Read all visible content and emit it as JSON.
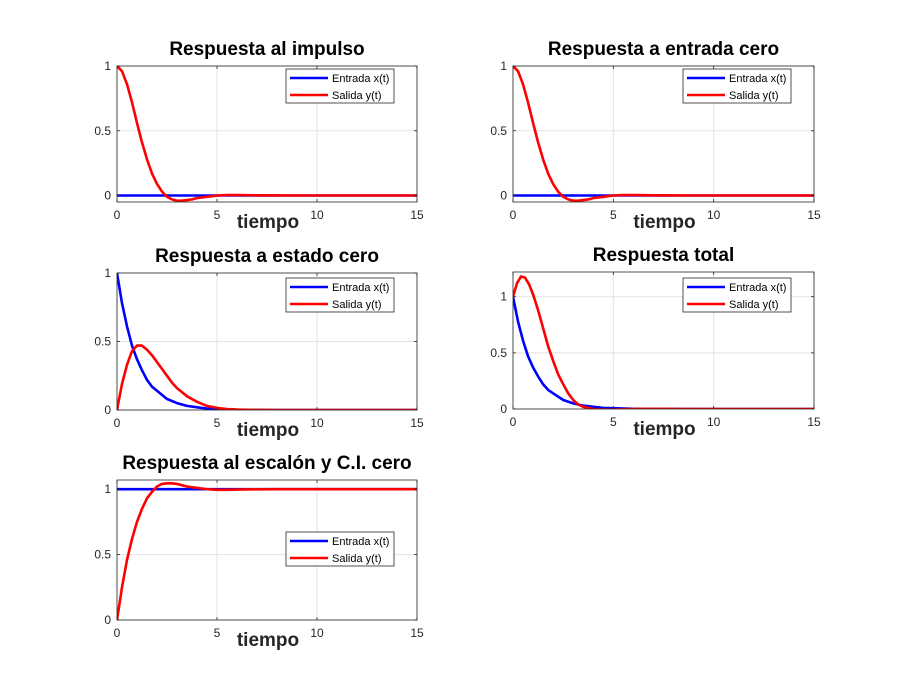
{
  "figure": {
    "background": "#ffffff"
  },
  "chart_data": [
    {
      "type": "line",
      "title": "Respuesta al impulso",
      "xlabel": "tiempo",
      "ylabel": "",
      "xlim": [
        0,
        15
      ],
      "ylim": [
        -0.05,
        1
      ],
      "xticks": [
        0,
        5,
        10,
        15
      ],
      "xtick_labels": [
        "0",
        "5",
        "10",
        "15"
      ],
      "yticks": [
        0,
        0.5,
        1
      ],
      "ytick_labels": [
        "0",
        "0.5",
        "1"
      ],
      "grid": true,
      "legend_location": "top-right",
      "series": [
        {
          "name": "Entrada x(t)",
          "color": "#0000ff",
          "x": [
            0,
            15
          ],
          "y": [
            0,
            0
          ]
        },
        {
          "name": "Salida y(t)",
          "color": "#ff0000",
          "x": [
            0,
            0.25,
            0.5,
            0.75,
            1,
            1.25,
            1.5,
            1.75,
            2,
            2.25,
            2.5,
            2.75,
            3,
            3.25,
            3.5,
            3.75,
            4,
            4.5,
            5,
            5.5,
            6,
            7,
            8,
            9,
            10,
            11,
            12,
            13,
            14,
            15
          ],
          "y": [
            1,
            0.96,
            0.86,
            0.72,
            0.56,
            0.41,
            0.28,
            0.17,
            0.09,
            0.03,
            -0.01,
            -0.03,
            -0.04,
            -0.04,
            -0.035,
            -0.03,
            -0.02,
            -0.01,
            0,
            0.003,
            0.004,
            0.002,
            0.001,
            0,
            0,
            0,
            0,
            0,
            0,
            0
          ]
        }
      ]
    },
    {
      "type": "line",
      "title": "Respuesta a entrada cero",
      "xlabel": "tiempo",
      "ylabel": "",
      "xlim": [
        0,
        15
      ],
      "ylim": [
        -0.05,
        1
      ],
      "xticks": [
        0,
        5,
        10,
        15
      ],
      "xtick_labels": [
        "0",
        "5",
        "10",
        "15"
      ],
      "yticks": [
        0,
        0.5,
        1
      ],
      "ytick_labels": [
        "0",
        "0.5",
        "1"
      ],
      "grid": true,
      "legend_location": "top-right",
      "series": [
        {
          "name": "Entrada x(t)",
          "color": "#0000ff",
          "x": [
            0,
            15
          ],
          "y": [
            0,
            0
          ]
        },
        {
          "name": "Salida y(t)",
          "color": "#ff0000",
          "x": [
            0,
            0.25,
            0.5,
            0.75,
            1,
            1.25,
            1.5,
            1.75,
            2,
            2.25,
            2.5,
            2.75,
            3,
            3.25,
            3.5,
            3.75,
            4,
            4.5,
            5,
            5.5,
            6,
            7,
            8,
            9,
            10,
            11,
            12,
            13,
            14,
            15
          ],
          "y": [
            1,
            0.96,
            0.86,
            0.72,
            0.56,
            0.41,
            0.28,
            0.17,
            0.09,
            0.03,
            -0.01,
            -0.03,
            -0.04,
            -0.04,
            -0.035,
            -0.03,
            -0.02,
            -0.01,
            0,
            0.003,
            0.004,
            0.002,
            0.001,
            0,
            0,
            0,
            0,
            0,
            0,
            0
          ]
        }
      ]
    },
    {
      "type": "line",
      "title": "Respuesta a estado cero",
      "xlabel": "tiempo",
      "ylabel": "",
      "xlim": [
        0,
        15
      ],
      "ylim": [
        0,
        1
      ],
      "xticks": [
        0,
        5,
        10,
        15
      ],
      "xtick_labels": [
        "0",
        "5",
        "10",
        "15"
      ],
      "yticks": [
        0,
        0.5,
        1
      ],
      "ytick_labels": [
        "0",
        "0.5",
        "1"
      ],
      "grid": true,
      "legend_location": "top-right",
      "series": [
        {
          "name": "Entrada x(t)",
          "color": "#0000ff",
          "x": [
            0,
            0.25,
            0.5,
            0.75,
            1,
            1.25,
            1.5,
            1.75,
            2,
            2.5,
            3,
            3.5,
            4,
            4.5,
            5,
            6,
            7,
            8,
            10,
            12,
            15
          ],
          "y": [
            1,
            0.78,
            0.61,
            0.47,
            0.37,
            0.29,
            0.22,
            0.17,
            0.14,
            0.08,
            0.05,
            0.03,
            0.02,
            0.01,
            0.007,
            0.002,
            0.001,
            0,
            0,
            0,
            0
          ]
        },
        {
          "name": "Salida y(t)",
          "color": "#ff0000",
          "x": [
            0,
            0.25,
            0.5,
            0.75,
            1,
            1.25,
            1.5,
            1.75,
            2,
            2.25,
            2.5,
            2.75,
            3,
            3.5,
            4,
            4.5,
            5,
            5.5,
            6,
            7,
            8,
            9,
            10,
            12,
            15
          ],
          "y": [
            0,
            0.19,
            0.33,
            0.43,
            0.47,
            0.47,
            0.44,
            0.4,
            0.35,
            0.3,
            0.25,
            0.2,
            0.16,
            0.1,
            0.06,
            0.03,
            0.015,
            0.007,
            0.003,
            0.001,
            0,
            0,
            0,
            0,
            0
          ]
        }
      ]
    },
    {
      "type": "line",
      "title": "Respuesta total",
      "xlabel": "tiempo",
      "ylabel": "",
      "xlim": [
        0,
        15
      ],
      "ylim": [
        0,
        1.22
      ],
      "xticks": [
        0,
        5,
        10,
        15
      ],
      "xtick_labels": [
        "0",
        "5",
        "10",
        "15"
      ],
      "yticks": [
        0,
        0.5,
        1
      ],
      "ytick_labels": [
        "0",
        "0.5",
        "1"
      ],
      "grid": true,
      "legend_location": "top-right",
      "series": [
        {
          "name": "Entrada x(t)",
          "color": "#0000ff",
          "x": [
            0,
            0.25,
            0.5,
            0.75,
            1,
            1.25,
            1.5,
            1.75,
            2,
            2.5,
            3,
            3.5,
            4,
            4.5,
            5,
            6,
            7,
            8,
            10,
            12,
            15
          ],
          "y": [
            1,
            0.78,
            0.61,
            0.47,
            0.37,
            0.29,
            0.22,
            0.17,
            0.14,
            0.08,
            0.05,
            0.03,
            0.02,
            0.01,
            0.007,
            0.002,
            0.001,
            0,
            0,
            0,
            0
          ]
        },
        {
          "name": "Salida y(t)",
          "color": "#ff0000",
          "x": [
            0,
            0.2,
            0.4,
            0.6,
            0.8,
            1,
            1.25,
            1.5,
            1.75,
            2,
            2.25,
            2.5,
            2.75,
            3,
            3.25,
            3.5,
            4,
            4.5,
            5,
            5.5,
            6,
            7,
            8,
            10,
            12,
            15
          ],
          "y": [
            1,
            1.12,
            1.18,
            1.17,
            1.11,
            1.02,
            0.88,
            0.72,
            0.56,
            0.43,
            0.31,
            0.22,
            0.14,
            0.08,
            0.04,
            0.02,
            0,
            -0.005,
            -0.005,
            -0.002,
            0,
            0.002,
            0.001,
            0,
            0,
            0
          ]
        }
      ]
    },
    {
      "type": "line",
      "title": "Respuesta al escalón y C.I. cero",
      "xlabel": "tiempo",
      "ylabel": "",
      "xlim": [
        0,
        15
      ],
      "ylim": [
        0,
        1.07
      ],
      "xticks": [
        0,
        5,
        10,
        15
      ],
      "xtick_labels": [
        "0",
        "5",
        "10",
        "15"
      ],
      "yticks": [
        0,
        0.5,
        1
      ],
      "ytick_labels": [
        "0",
        "0.5",
        "1"
      ],
      "grid": true,
      "legend_location": "center-right",
      "series": [
        {
          "name": "Entrada x(t)",
          "color": "#0000ff",
          "x": [
            0,
            15
          ],
          "y": [
            1,
            1
          ]
        },
        {
          "name": "Salida y(t)",
          "color": "#ff0000",
          "x": [
            0,
            0.25,
            0.5,
            0.75,
            1,
            1.25,
            1.5,
            1.75,
            2,
            2.25,
            2.5,
            2.75,
            3,
            3.25,
            3.5,
            4,
            4.5,
            5,
            5.5,
            6,
            7,
            8,
            10,
            12,
            15
          ],
          "y": [
            0,
            0.25,
            0.46,
            0.62,
            0.75,
            0.85,
            0.93,
            0.98,
            1.02,
            1.04,
            1.045,
            1.045,
            1.04,
            1.03,
            1.02,
            1.01,
            1.0,
            0.995,
            0.995,
            0.997,
            0.999,
            1,
            1,
            1,
            1
          ]
        }
      ]
    }
  ]
}
